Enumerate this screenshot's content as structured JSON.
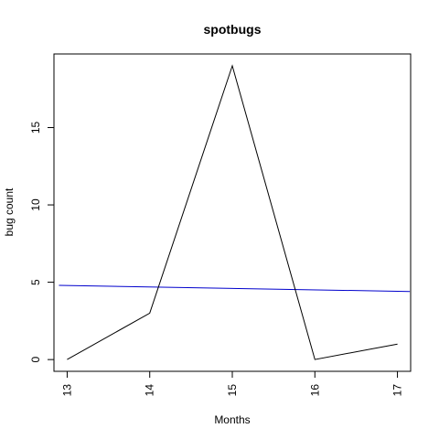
{
  "chart_data": {
    "type": "line",
    "title": "spotbugs",
    "xlabel": "Months",
    "ylabel": "bug count",
    "x": [
      13,
      14,
      15,
      16,
      17
    ],
    "series": [
      {
        "values": [
          0,
          3,
          19,
          0,
          1
        ],
        "color": "#000000"
      }
    ],
    "trend_line": {
      "x": [
        12.9,
        17.15
      ],
      "y": [
        4.8,
        4.4
      ],
      "color": "#0000cc"
    },
    "xlim": [
      12.84,
      17.16
    ],
    "ylim": [
      -0.76,
      19.76
    ],
    "x_ticks": [
      13,
      14,
      15,
      16,
      17
    ],
    "y_ticks": [
      0,
      5,
      10,
      15
    ],
    "grid": false,
    "legend": "none"
  }
}
